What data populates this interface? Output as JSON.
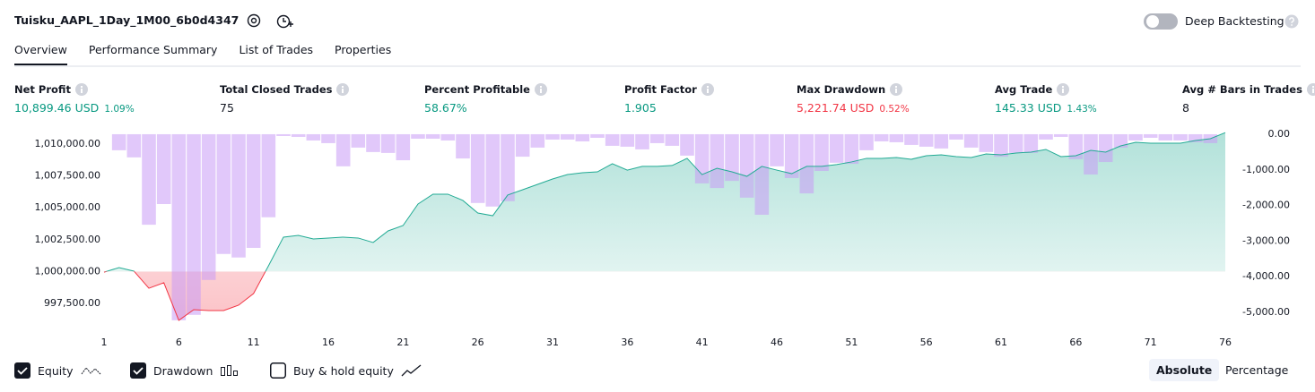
{
  "header": {
    "title": "Tuisku_AAPL_1Day_1M00_6b0d4347",
    "deep_backtesting": "Deep Backtesting"
  },
  "tabs": {
    "items": [
      "Overview",
      "Performance Summary",
      "List of Trades",
      "Properties"
    ],
    "active": 0
  },
  "metrics": [
    {
      "label": "Net Profit",
      "value": "10,899.46 USD",
      "change": "1.09%",
      "color": "#089981"
    },
    {
      "label": "Total Closed Trades",
      "value": "75",
      "color": "#131722"
    },
    {
      "label": "Percent Profitable",
      "value": "58.67%",
      "color": "#089981"
    },
    {
      "label": "Profit Factor",
      "value": "1.905",
      "color": "#089981"
    },
    {
      "label": "Max Drawdown",
      "value": "5,221.74 USD",
      "change": "0.52%",
      "color": "#f23645"
    },
    {
      "label": "Avg Trade",
      "value": "145.33 USD",
      "change": "1.43%",
      "color": "#089981"
    },
    {
      "label": "Avg # Bars in Trades",
      "value": "8",
      "color": "#131722"
    }
  ],
  "chart_data": {
    "type": "combo",
    "x": [
      1,
      2,
      3,
      4,
      5,
      6,
      7,
      8,
      9,
      10,
      11,
      12,
      13,
      14,
      15,
      16,
      17,
      18,
      19,
      20,
      21,
      22,
      23,
      24,
      25,
      26,
      27,
      28,
      29,
      30,
      31,
      32,
      33,
      34,
      35,
      36,
      37,
      38,
      39,
      40,
      41,
      42,
      43,
      44,
      45,
      46,
      47,
      48,
      49,
      50,
      51,
      52,
      53,
      54,
      55,
      56,
      57,
      58,
      59,
      60,
      61,
      62,
      63,
      64,
      65,
      66,
      67,
      68,
      69,
      70,
      71,
      72,
      73,
      74,
      75,
      76
    ],
    "series": [
      {
        "name": "Equity",
        "type": "line",
        "color": "#22ab94",
        "negative_color": "#f23645",
        "values": [
          999950,
          1000310,
          1000030,
          998690,
          999120,
          996170,
          997010,
          996940,
          996940,
          997360,
          998270,
          1000450,
          1002700,
          1002840,
          1002560,
          1002630,
          1002700,
          1002630,
          1002280,
          1003190,
          1003610,
          1005300,
          1006070,
          1006070,
          1005580,
          1004590,
          1004380,
          1006000,
          1006420,
          1006840,
          1007260,
          1007610,
          1007750,
          1007820,
          1008460,
          1007960,
          1008250,
          1008250,
          1008320,
          1008880,
          1007610,
          1008100,
          1007820,
          1007470,
          1008250,
          1007960,
          1007680,
          1008250,
          1008250,
          1008390,
          1008600,
          1008880,
          1008880,
          1008950,
          1008810,
          1009090,
          1009160,
          1009020,
          1008950,
          1009230,
          1009160,
          1009300,
          1009370,
          1009580,
          1009020,
          1009090,
          1009510,
          1009370,
          1009860,
          1010140,
          1010070,
          1010070,
          1010070,
          1010280,
          1010420,
          1010899.46
        ]
      },
      {
        "name": "Drawdown",
        "type": "bar",
        "axis": "y2",
        "color": "#c99af5",
        "values": [
          0,
          -450,
          -650,
          -2540,
          -1960,
          -5221.74,
          -5070,
          -4090,
          -3360,
          -3460,
          -3190,
          -2330,
          -50,
          -75,
          -175,
          -250,
          -900,
          -375,
          -500,
          -525,
          -730,
          -125,
          -125,
          -175,
          -680,
          -1930,
          -2030,
          -1880,
          -630,
          -375,
          -150,
          -150,
          -200,
          -100,
          -325,
          -350,
          -425,
          -250,
          -325,
          -600,
          -1380,
          -1510,
          -1310,
          -1780,
          -2260,
          -900,
          -1230,
          -1660,
          -1030,
          -800,
          -830,
          -450,
          -200,
          -225,
          -300,
          -350,
          -400,
          -150,
          -375,
          -500,
          -630,
          -525,
          -525,
          -150,
          -75,
          -700,
          -1130,
          -780,
          -375,
          -175,
          -100,
          -175,
          -175,
          -225,
          -250,
          0
        ]
      }
    ],
    "baseline": 1000000,
    "xlim": [
      1,
      76
    ],
    "xticks": [
      1,
      6,
      11,
      16,
      21,
      26,
      31,
      36,
      41,
      46,
      51,
      56,
      61,
      66,
      71,
      76
    ],
    "ylim": [
      996025,
      1010913
    ],
    "yticks": [
      {
        "value": 997500,
        "label": "997,500.00"
      },
      {
        "value": 1000000,
        "label": "1,000,000.00"
      },
      {
        "value": 1002500,
        "label": "1,002,500.00"
      },
      {
        "value": 1005000,
        "label": "1,005,000.00"
      },
      {
        "value": 1007500,
        "label": "1,007,500.00"
      },
      {
        "value": 1010000,
        "label": "1,010,000.00"
      }
    ],
    "y2lim": [
      -5276,
      50
    ],
    "y2ticks": [
      {
        "value": 0,
        "label": "0.00"
      },
      {
        "value": -1000,
        "label": "-1,000.00"
      },
      {
        "value": -2000,
        "label": "-2,000.00"
      },
      {
        "value": -3000,
        "label": "-3,000.00"
      },
      {
        "value": -4000,
        "label": "-4,000.00"
      },
      {
        "value": -5000,
        "label": "-5,000.00"
      }
    ]
  },
  "controls": {
    "buy_hold": "Buy & hold equity",
    "modes": [
      "Absolute",
      "Percentage"
    ],
    "active_mode": 0
  }
}
